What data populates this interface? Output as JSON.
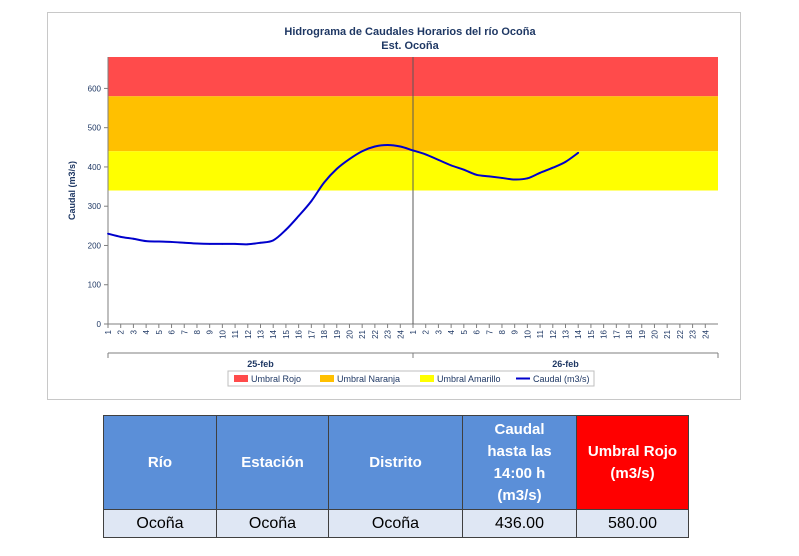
{
  "chart_data": {
    "type": "line",
    "title": "Hidrograma de Caudales Horarios del río Ocoña",
    "subtitle": "Est. Ocoña",
    "ylabel": "Caudal (m3/s)",
    "ylim": [
      0,
      680
    ],
    "yticks": [
      0,
      100,
      200,
      300,
      400,
      500,
      600
    ],
    "xticks": [
      "1",
      "2",
      "3",
      "4",
      "5",
      "6",
      "7",
      "8",
      "9",
      "10",
      "11",
      "12",
      "13",
      "14",
      "15",
      "16",
      "17",
      "18",
      "19",
      "20",
      "21",
      "22",
      "23",
      "24",
      "1",
      "2",
      "3",
      "4",
      "5",
      "6",
      "7",
      "8",
      "9",
      "10",
      "11",
      "12",
      "13",
      "14",
      "15",
      "16",
      "17",
      "18",
      "19",
      "20",
      "21",
      "22",
      "23",
      "24"
    ],
    "day_labels": [
      "25-feb",
      "26-feb"
    ],
    "thresholds": [
      {
        "name": "Umbral Rojo",
        "from": 580,
        "to": 680,
        "color": "#ff4b4b"
      },
      {
        "name": "Umbral Naranja",
        "from": 440,
        "to": 580,
        "color": "#ffc000"
      },
      {
        "name": "Umbral Amarillo",
        "from": 340,
        "to": 440,
        "color": "#ffff00"
      }
    ],
    "series": [
      {
        "name": "Caudal (m3/s)",
        "color": "#0000cc",
        "x": [
          1,
          2,
          3,
          4,
          5,
          6,
          7,
          8,
          9,
          10,
          11,
          12,
          13,
          14,
          15,
          16,
          17,
          18,
          19,
          20,
          21,
          22,
          23,
          24,
          25,
          26,
          27,
          28,
          29,
          30,
          31,
          32,
          33,
          34,
          35,
          36,
          37,
          38
        ],
        "values": [
          230,
          222,
          217,
          211,
          210,
          209,
          207,
          205,
          204,
          204,
          204,
          203,
          207,
          213,
          240,
          275,
          313,
          360,
          395,
          420,
          440,
          452,
          456,
          452,
          442,
          432,
          418,
          404,
          393,
          380,
          376,
          372,
          368,
          371,
          385,
          398,
          413,
          436
        ]
      }
    ],
    "legend": [
      "Umbral Rojo",
      "Umbral Naranja",
      "Umbral Amarillo",
      "Caudal (m3/s)"
    ]
  },
  "table": {
    "headers": {
      "rio": "Río",
      "estacion": "Estación",
      "distrito": "Distrito",
      "caudal_l1": "Caudal",
      "caudal_l2": "hasta las",
      "caudal_l3": "14:00 h",
      "caudal_l4": "(m3/s)",
      "umbral_l1": "Umbral Rojo",
      "umbral_l2": "(m3/s)"
    },
    "row": {
      "rio": "Ocoña",
      "estacion": "Ocoña",
      "distrito": "Ocoña",
      "caudal": "436.00",
      "umbral": "580.00"
    }
  }
}
